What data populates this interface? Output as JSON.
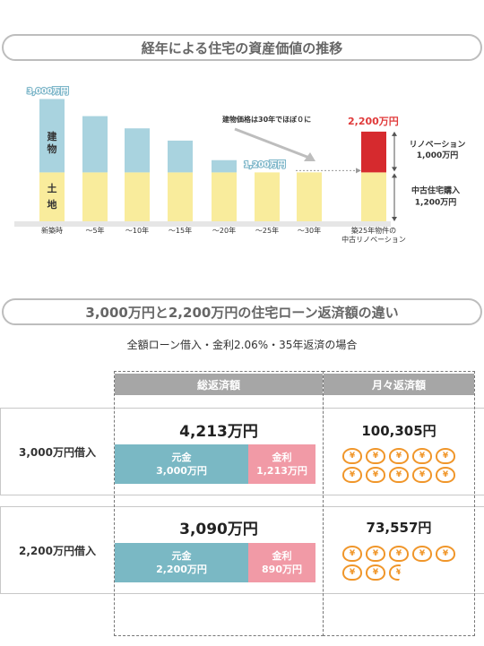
{
  "sections": {
    "title1": "経年による住宅の資産価値の推移",
    "title2": "3,000万円と2,200万円の住宅ローン返済額の違い"
  },
  "chart_data": {
    "type": "bar",
    "title": "経年による住宅の資産価値の推移",
    "categories": [
      "新築時",
      "～5年",
      "～10年",
      "～15年",
      "～20年",
      "～25年",
      "～30年",
      "築25年物件の中古リノベーション"
    ],
    "series": [
      {
        "name": "土地",
        "values": [
          1200,
          1200,
          1200,
          1200,
          1200,
          1200,
          1200,
          1200
        ]
      },
      {
        "name": "建物",
        "values": [
          1800,
          1380,
          1080,
          780,
          300,
          0,
          0,
          0
        ]
      },
      {
        "name": "リノベーション",
        "values": [
          0,
          0,
          0,
          0,
          0,
          0,
          0,
          1000
        ]
      }
    ],
    "stack_labels": {
      "building": "建物",
      "land": "土地"
    },
    "value_labels": {
      "new": "3,000万円",
      "year25": "1,200万円",
      "renovated": "2,200万円"
    },
    "annotations": {
      "depreciation": "建物価格は30年でほぼ０に",
      "renovation_line1": "リノベーション",
      "renovation_line2": "1,000万円",
      "purchase_line1": "中古住宅購入",
      "purchase_line2": "1,200万円",
      "last_cat_line1": "築25年物件の",
      "last_cat_line2": "中古リノベーション"
    },
    "colors": {
      "building": "#a9d3df",
      "land": "#f9ec9c",
      "renovation": "#d62a2e",
      "label_blue": "#7db6c9",
      "label_red": "#e03a3a"
    }
  },
  "loan": {
    "condition": "全額ローン借入・金利2.06%・35年返済の場合",
    "col_total": "総返済額",
    "col_monthly": "月々返済額",
    "rows": [
      {
        "label": "3,000万円借入",
        "total": "4,213万円",
        "principal_label": "元金",
        "principal_value": "3,000万円",
        "principal_amount": 3000,
        "interest_label": "金利",
        "interest_value": "1,213万円",
        "interest_amount": 1213,
        "monthly": "100,305円",
        "coins": 10
      },
      {
        "label": "2,200万円借入",
        "total": "3,090万円",
        "principal_label": "元金",
        "principal_value": "2,200万円",
        "principal_amount": 2200,
        "interest_label": "金利",
        "interest_value": "890万円",
        "interest_amount": 890,
        "monthly": "73,557円",
        "coins": 7.35
      }
    ],
    "coin_symbol": "¥",
    "colors": {
      "principal": "#7ab8c4",
      "interest": "#f19aa6",
      "coin": "#f0962a"
    }
  }
}
